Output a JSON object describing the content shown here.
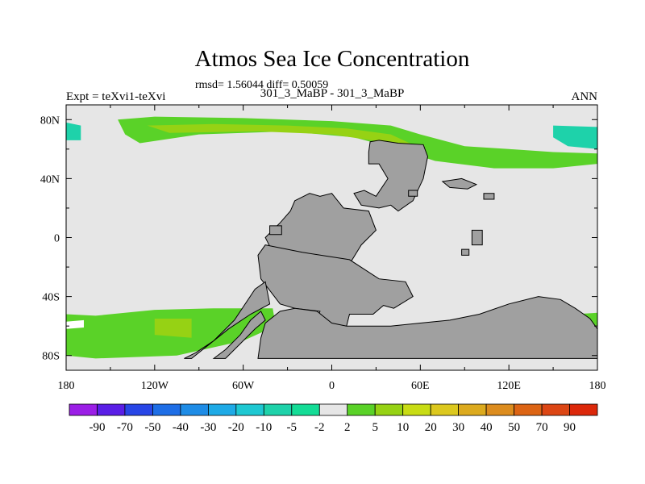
{
  "chart_data": {
    "type": "heatmap",
    "title": "Atmos Sea Ice Concentration",
    "stats": "rmsd= 1.56044 diff= 0.50059",
    "subtitle_left": "Expt = teXvi1-teXvi",
    "subtitle_center": "301_3_MaBP - 301_3_MaBP",
    "subtitle_right": "ANN",
    "x_ticks": [
      "180",
      "120W",
      "60W",
      "0",
      "60E",
      "120E",
      "180"
    ],
    "x_tick_values": [
      -180,
      -120,
      -60,
      0,
      60,
      120,
      180
    ],
    "y_ticks": [
      "80N",
      "40N",
      "0",
      "40S",
      "80S"
    ],
    "y_tick_values": [
      80,
      40,
      0,
      -40,
      -80
    ],
    "xlim": [
      -180,
      180
    ],
    "ylim": [
      -90,
      90
    ],
    "colorbar": {
      "labels": [
        "-90",
        "-70",
        "-50",
        "-40",
        "-30",
        "-20",
        "-10",
        "-5",
        "-2",
        "2",
        "5",
        "10",
        "20",
        "30",
        "40",
        "50",
        "70",
        "90"
      ],
      "colors": [
        "#9b1ee6",
        "#5a1ee6",
        "#2846e6",
        "#1e6ee6",
        "#1e8ce6",
        "#1eaae6",
        "#1ec8d2",
        "#1ed2aa",
        "#14dc96",
        "#e6e6e6",
        "#5ad228",
        "#96d214",
        "#c8dc14",
        "#dcc81e",
        "#dcaa1e",
        "#dc8c1e",
        "#dc6414",
        "#dc4614",
        "#dc280a"
      ]
    },
    "regions": [
      {
        "name": "arctic-band-positive",
        "category": "2 to 5",
        "color": "#5ad228",
        "polygon": [
          [
            -145,
            80
          ],
          [
            -120,
            82
          ],
          [
            -60,
            81
          ],
          [
            0,
            79
          ],
          [
            40,
            76
          ],
          [
            60,
            70
          ],
          [
            90,
            62
          ],
          [
            120,
            60
          ],
          [
            150,
            58
          ],
          [
            180,
            57
          ],
          [
            180,
            50
          ],
          [
            150,
            47
          ],
          [
            110,
            47
          ],
          [
            70,
            52
          ],
          [
            45,
            60
          ],
          [
            15,
            68
          ],
          [
            -30,
            72
          ],
          [
            -90,
            70
          ],
          [
            -130,
            64
          ],
          [
            -140,
            70
          ]
        ]
      },
      {
        "name": "arctic-band-core",
        "category": "5 to 10",
        "color": "#96d214",
        "polygon": [
          [
            -125,
            76
          ],
          [
            -80,
            77
          ],
          [
            -30,
            76
          ],
          [
            10,
            74
          ],
          [
            40,
            70
          ],
          [
            55,
            63
          ],
          [
            40,
            64
          ],
          [
            0,
            70
          ],
          [
            -50,
            72
          ],
          [
            -110,
            71
          ]
        ]
      },
      {
        "name": "arctic-east-negative",
        "category": "-5 to -2",
        "color": "#1ed2aa",
        "polygon": [
          [
            150,
            76
          ],
          [
            180,
            75
          ],
          [
            180,
            60
          ],
          [
            160,
            62
          ],
          [
            150,
            68
          ]
        ]
      },
      {
        "name": "arctic-west-negative",
        "category": "-5 to -2",
        "color": "#1ed2aa",
        "polygon": [
          [
            -180,
            78
          ],
          [
            -170,
            76
          ],
          [
            -170,
            66
          ],
          [
            -180,
            66
          ]
        ]
      },
      {
        "name": "southern-band-positive",
        "category": "2 to 5",
        "color": "#5ad228",
        "polygon": [
          [
            -180,
            -52
          ],
          [
            -160,
            -53
          ],
          [
            -120,
            -49
          ],
          [
            -80,
            -48
          ],
          [
            -40,
            -48
          ],
          [
            -38,
            -60
          ],
          [
            -60,
            -70
          ],
          [
            -105,
            -80
          ],
          [
            -160,
            -82
          ],
          [
            -180,
            -80
          ]
        ]
      },
      {
        "name": "southern-band-core",
        "category": "5 to 10",
        "color": "#96d214",
        "polygon": [
          [
            -120,
            -55
          ],
          [
            -95,
            -55
          ],
          [
            -95,
            -68
          ],
          [
            -120,
            -66
          ]
        ]
      },
      {
        "name": "southern-east-positive",
        "category": "2 to 5",
        "color": "#5ad228",
        "polygon": [
          [
            165,
            -52
          ],
          [
            180,
            -51
          ],
          [
            180,
            -60
          ],
          [
            168,
            -58
          ]
        ]
      },
      {
        "name": "southern-west-white",
        "category": "-2 to 2",
        "color": "#ffffff",
        "polygon": [
          [
            -180,
            -57
          ],
          [
            -168,
            -56
          ],
          [
            -168,
            -61
          ],
          [
            -180,
            -62
          ]
        ]
      }
    ],
    "land": [
      {
        "name": "north-eurasia-block",
        "polygon": [
          [
            26,
            65
          ],
          [
            32,
            66
          ],
          [
            45,
            64
          ],
          [
            62,
            63
          ],
          [
            65,
            55
          ],
          [
            62,
            40
          ],
          [
            55,
            25
          ],
          [
            45,
            18
          ],
          [
            40,
            22
          ],
          [
            32,
            20
          ],
          [
            20,
            22
          ],
          [
            15,
            30
          ],
          [
            22,
            32
          ],
          [
            30,
            28
          ],
          [
            38,
            40
          ],
          [
            32,
            50
          ],
          [
            25,
            50
          ],
          [
            25,
            58
          ]
        ]
      },
      {
        "name": "equatorial-africa",
        "polygon": [
          [
            -25,
            25
          ],
          [
            -15,
            30
          ],
          [
            -8,
            28
          ],
          [
            0,
            30
          ],
          [
            8,
            20
          ],
          [
            25,
            18
          ],
          [
            30,
            5
          ],
          [
            20,
            -5
          ],
          [
            12,
            -18
          ],
          [
            -25,
            -18
          ],
          [
            -40,
            -10
          ],
          [
            -45,
            0
          ],
          [
            -35,
            10
          ],
          [
            -28,
            18
          ]
        ]
      },
      {
        "name": "central-south-mass",
        "polygon": [
          [
            -45,
            -5
          ],
          [
            -20,
            -10
          ],
          [
            12,
            -15
          ],
          [
            32,
            -28
          ],
          [
            50,
            -30
          ],
          [
            55,
            -40
          ],
          [
            42,
            -48
          ],
          [
            35,
            -46
          ],
          [
            28,
            -52
          ],
          [
            12,
            -52
          ],
          [
            10,
            -60
          ],
          [
            -2,
            -60
          ],
          [
            -10,
            -55
          ],
          [
            -8,
            -50
          ],
          [
            -25,
            -48
          ],
          [
            -35,
            -45
          ],
          [
            -48,
            -28
          ],
          [
            -50,
            -12
          ]
        ]
      },
      {
        "name": "antarctica",
        "polygon": [
          [
            -50,
            -82
          ],
          [
            -48,
            -68
          ],
          [
            -45,
            -58
          ],
          [
            -35,
            -50
          ],
          [
            -25,
            -48
          ],
          [
            -10,
            -50
          ],
          [
            0,
            -58
          ],
          [
            10,
            -60
          ],
          [
            40,
            -60
          ],
          [
            60,
            -58
          ],
          [
            80,
            -56
          ],
          [
            100,
            -52
          ],
          [
            120,
            -45
          ],
          [
            140,
            -40
          ],
          [
            155,
            -42
          ],
          [
            165,
            -48
          ],
          [
            175,
            -55
          ],
          [
            180,
            -62
          ],
          [
            180,
            -82
          ]
        ]
      },
      {
        "name": "andes-arm",
        "polygon": [
          [
            -100,
            -82
          ],
          [
            -92,
            -78
          ],
          [
            -80,
            -70
          ],
          [
            -66,
            -56
          ],
          [
            -52,
            -35
          ],
          [
            -45,
            -30
          ],
          [
            -42,
            -45
          ],
          [
            -55,
            -52
          ],
          [
            -70,
            -62
          ],
          [
            -85,
            -74
          ],
          [
            -95,
            -82
          ]
        ]
      },
      {
        "name": "western-isle",
        "polygon": [
          [
            -80,
            -82
          ],
          [
            -72,
            -76
          ],
          [
            -62,
            -66
          ],
          [
            -55,
            -56
          ],
          [
            -48,
            -50
          ],
          [
            -45,
            -56
          ],
          [
            -52,
            -62
          ],
          [
            -62,
            -72
          ],
          [
            -72,
            -82
          ]
        ]
      },
      {
        "name": "small-island-sw",
        "polygon": [
          [
            -42,
            8
          ],
          [
            -34,
            8
          ],
          [
            -34,
            2
          ],
          [
            -42,
            2
          ]
        ]
      },
      {
        "name": "east-islands",
        "polygon": [
          [
            75,
            38
          ],
          [
            88,
            40
          ],
          [
            98,
            36
          ],
          [
            92,
            33
          ],
          [
            80,
            34
          ]
        ]
      },
      {
        "name": "east-isle-small",
        "polygon": [
          [
            103,
            30
          ],
          [
            110,
            30
          ],
          [
            110,
            26
          ],
          [
            103,
            26
          ]
        ]
      },
      {
        "name": "east-isle-south",
        "polygon": [
          [
            95,
            5
          ],
          [
            102,
            5
          ],
          [
            102,
            -5
          ],
          [
            95,
            -5
          ]
        ]
      },
      {
        "name": "east-dot",
        "polygon": [
          [
            88,
            -8
          ],
          [
            93,
            -8
          ],
          [
            93,
            -12
          ],
          [
            88,
            -12
          ]
        ]
      },
      {
        "name": "north-dot",
        "polygon": [
          [
            52,
            32
          ],
          [
            58,
            32
          ],
          [
            58,
            28
          ],
          [
            52,
            28
          ]
        ]
      }
    ]
  }
}
